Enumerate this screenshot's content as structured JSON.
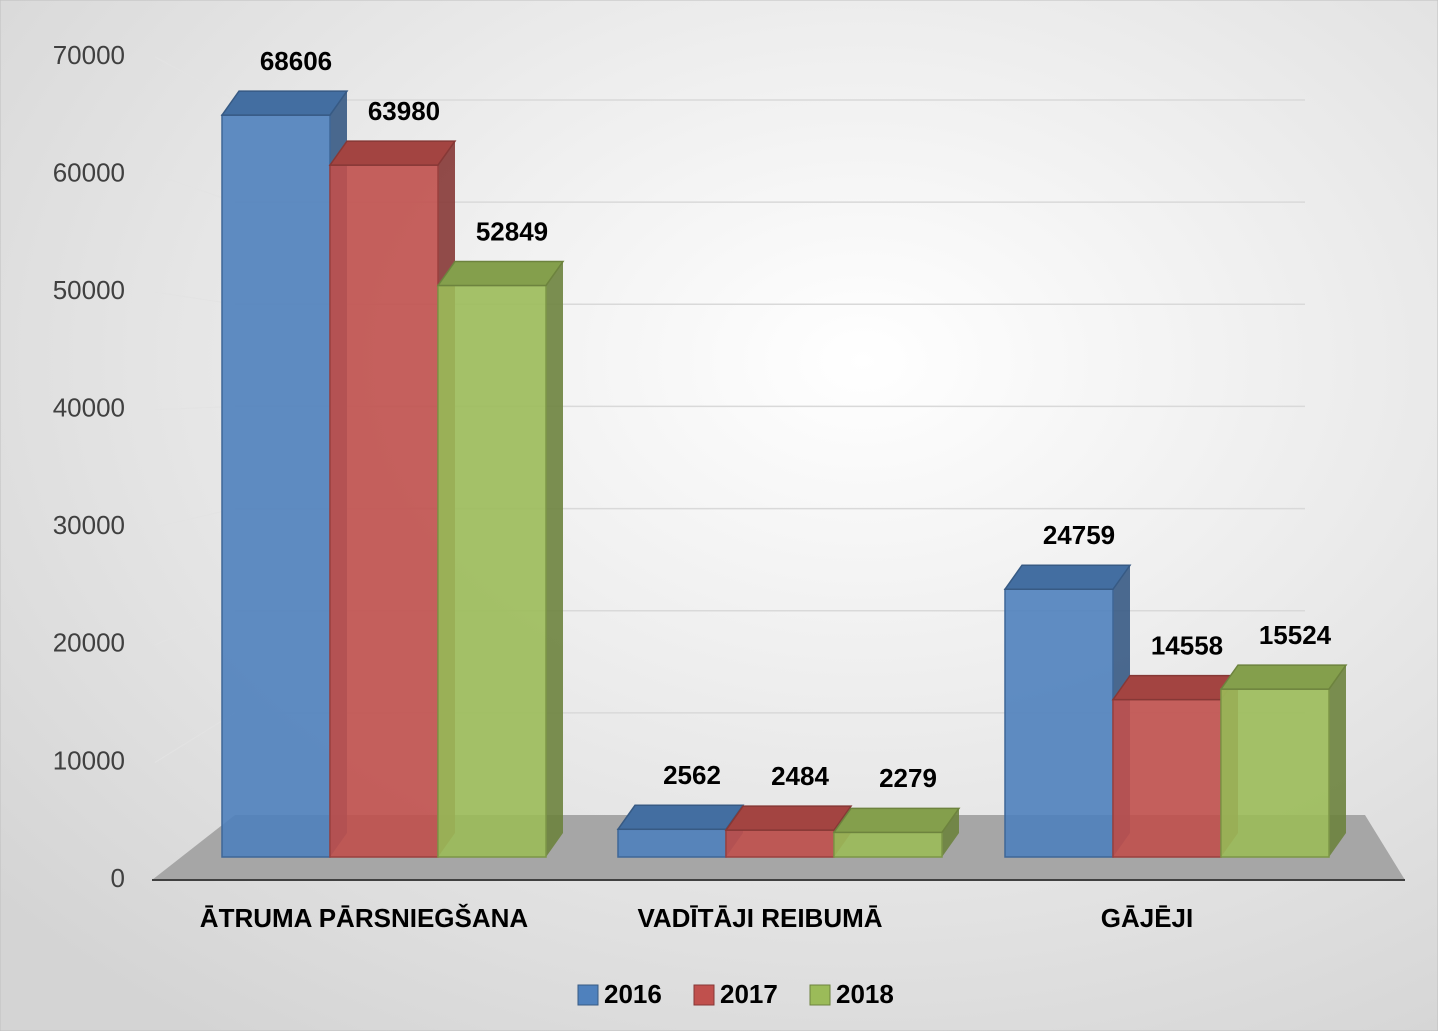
{
  "chart_data": {
    "type": "bar",
    "categories": [
      "ĀTRUMA PĀRSNIEGŠANA",
      "VADĪTĀJI REIBUMĀ",
      "GĀJĒJI"
    ],
    "series": [
      {
        "name": "2016",
        "color": "#4f81bd",
        "values": [
          68606,
          2562,
          24759
        ]
      },
      {
        "name": "2017",
        "color": "#c0504d",
        "values": [
          63980,
          2484,
          14558
        ]
      },
      {
        "name": "2018",
        "color": "#9bbb59",
        "values": [
          52849,
          2279,
          15524
        ]
      }
    ],
    "ylim": [
      0,
      70000
    ],
    "yticks": [
      0,
      10000,
      20000,
      30000,
      40000,
      50000,
      60000,
      70000
    ],
    "grid": true,
    "legend": "bottom",
    "data_labels": true
  }
}
